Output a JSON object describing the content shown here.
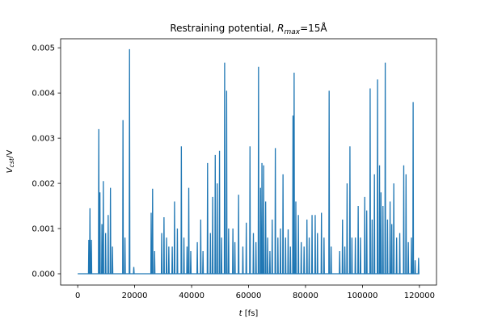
{
  "chart_data": {
    "type": "line",
    "title": "Restraining potential, R_max=15Å",
    "title_parts": {
      "prefix": "Restraining potential, ",
      "symbol": "R",
      "subscript": "max",
      "suffix": "=15Å"
    },
    "xlabel_parts": {
      "symbol": "t",
      "rest": " [fs]"
    },
    "ylabel_parts": {
      "symbol": "V",
      "subscript": "cst",
      "rest": "/V"
    },
    "xlim": [
      -6000,
      126000
    ],
    "ylim": [
      -0.00025,
      0.0052
    ],
    "xticks": [
      0,
      20000,
      40000,
      60000,
      80000,
      100000,
      120000
    ],
    "xtick_labels": [
      "0",
      "20000",
      "40000",
      "60000",
      "80000",
      "100000",
      "120000"
    ],
    "yticks": [
      0,
      0.001,
      0.002,
      0.003,
      0.004,
      0.005
    ],
    "ytick_labels": [
      "0.000",
      "0.001",
      "0.002",
      "0.003",
      "0.004",
      "0.005"
    ],
    "grid": false,
    "series": [
      {
        "color": "#1f77b4",
        "x_range": [
          0,
          120000
        ],
        "baseline": 0,
        "spikes": [
          [
            3900,
            0.00075
          ],
          [
            4300,
            0.00145
          ],
          [
            4800,
            0.00075
          ],
          [
            7400,
            0.0032
          ],
          [
            7800,
            0.0018
          ],
          [
            8500,
            0.0011
          ],
          [
            9000,
            0.00205
          ],
          [
            9800,
            0.0009
          ],
          [
            10700,
            0.0013
          ],
          [
            11500,
            0.0019
          ],
          [
            12200,
            0.0006
          ],
          [
            15900,
            0.0034
          ],
          [
            16600,
            0.0008
          ],
          [
            18200,
            0.00497
          ],
          [
            19700,
            0.00015
          ],
          [
            25800,
            0.00135
          ],
          [
            26300,
            0.00188
          ],
          [
            27000,
            0.0005
          ],
          [
            29500,
            0.0009
          ],
          [
            30300,
            0.00125
          ],
          [
            31200,
            0.0008
          ],
          [
            32000,
            0.0006
          ],
          [
            33200,
            0.0006
          ],
          [
            34000,
            0.0016
          ],
          [
            35000,
            0.001
          ],
          [
            36400,
            0.00282
          ],
          [
            37300,
            0.0008
          ],
          [
            38400,
            0.0006
          ],
          [
            39000,
            0.0019
          ],
          [
            39700,
            0.0005
          ],
          [
            42000,
            0.0007
          ],
          [
            43200,
            0.0012
          ],
          [
            44000,
            0.0005
          ],
          [
            45600,
            0.00245
          ],
          [
            46600,
            0.0009
          ],
          [
            47400,
            0.0017
          ],
          [
            48300,
            0.00263
          ],
          [
            49000,
            0.002
          ],
          [
            49800,
            0.00272
          ],
          [
            50500,
            0.0008
          ],
          [
            51600,
            0.00467
          ],
          [
            52300,
            0.00405
          ],
          [
            53000,
            0.001
          ],
          [
            54500,
            0.001
          ],
          [
            55200,
            0.0007
          ],
          [
            56500,
            0.00175
          ],
          [
            58000,
            0.0006
          ],
          [
            59200,
            0.00113
          ],
          [
            60500,
            0.00282
          ],
          [
            61700,
            0.0009
          ],
          [
            62600,
            0.0007
          ],
          [
            63500,
            0.00458
          ],
          [
            64200,
            0.0019
          ],
          [
            64700,
            0.00245
          ],
          [
            65300,
            0.0024
          ],
          [
            66000,
            0.0016
          ],
          [
            66700,
            0.0008
          ],
          [
            67500,
            0.0005
          ],
          [
            68300,
            0.0012
          ],
          [
            69400,
            0.00278
          ],
          [
            70300,
            0.0008
          ],
          [
            71200,
            0.001
          ],
          [
            72100,
            0.0022
          ],
          [
            73000,
            0.0008
          ],
          [
            73900,
            0.00098
          ],
          [
            74700,
            0.0006
          ],
          [
            75600,
            0.0035
          ],
          [
            76000,
            0.00445
          ],
          [
            76600,
            0.0016
          ],
          [
            77500,
            0.0013
          ],
          [
            78500,
            0.0007
          ],
          [
            79500,
            0.0006
          ],
          [
            80500,
            0.0012
          ],
          [
            81300,
            0.0008
          ],
          [
            82300,
            0.0013
          ],
          [
            83400,
            0.0013
          ],
          [
            84200,
            0.0009
          ],
          [
            85600,
            0.00135
          ],
          [
            86500,
            0.0008
          ],
          [
            88300,
            0.00405
          ],
          [
            89000,
            0.0006
          ],
          [
            92000,
            0.0005
          ],
          [
            93000,
            0.0012
          ],
          [
            93800,
            0.0006
          ],
          [
            94600,
            0.002
          ],
          [
            95600,
            0.00282
          ],
          [
            96300,
            0.0008
          ],
          [
            97500,
            0.0008
          ],
          [
            98500,
            0.0015
          ],
          [
            99300,
            0.0008
          ],
          [
            100800,
            0.0017
          ],
          [
            101500,
            0.0014
          ],
          [
            102700,
            0.0041
          ],
          [
            103400,
            0.0012
          ],
          [
            104200,
            0.0022
          ],
          [
            105300,
            0.0043
          ],
          [
            106000,
            0.0024
          ],
          [
            106500,
            0.0018
          ],
          [
            107200,
            0.0015
          ],
          [
            108000,
            0.00467
          ],
          [
            108800,
            0.0012
          ],
          [
            109700,
            0.0016
          ],
          [
            110300,
            0.0011
          ],
          [
            111000,
            0.002
          ],
          [
            112000,
            0.0008
          ],
          [
            113100,
            0.0009
          ],
          [
            114500,
            0.0024
          ],
          [
            115300,
            0.0022
          ],
          [
            116100,
            0.0007
          ],
          [
            117200,
            0.0008
          ],
          [
            117800,
            0.0038
          ],
          [
            118500,
            0.0003
          ],
          [
            119700,
            0.00035
          ]
        ]
      }
    ]
  }
}
